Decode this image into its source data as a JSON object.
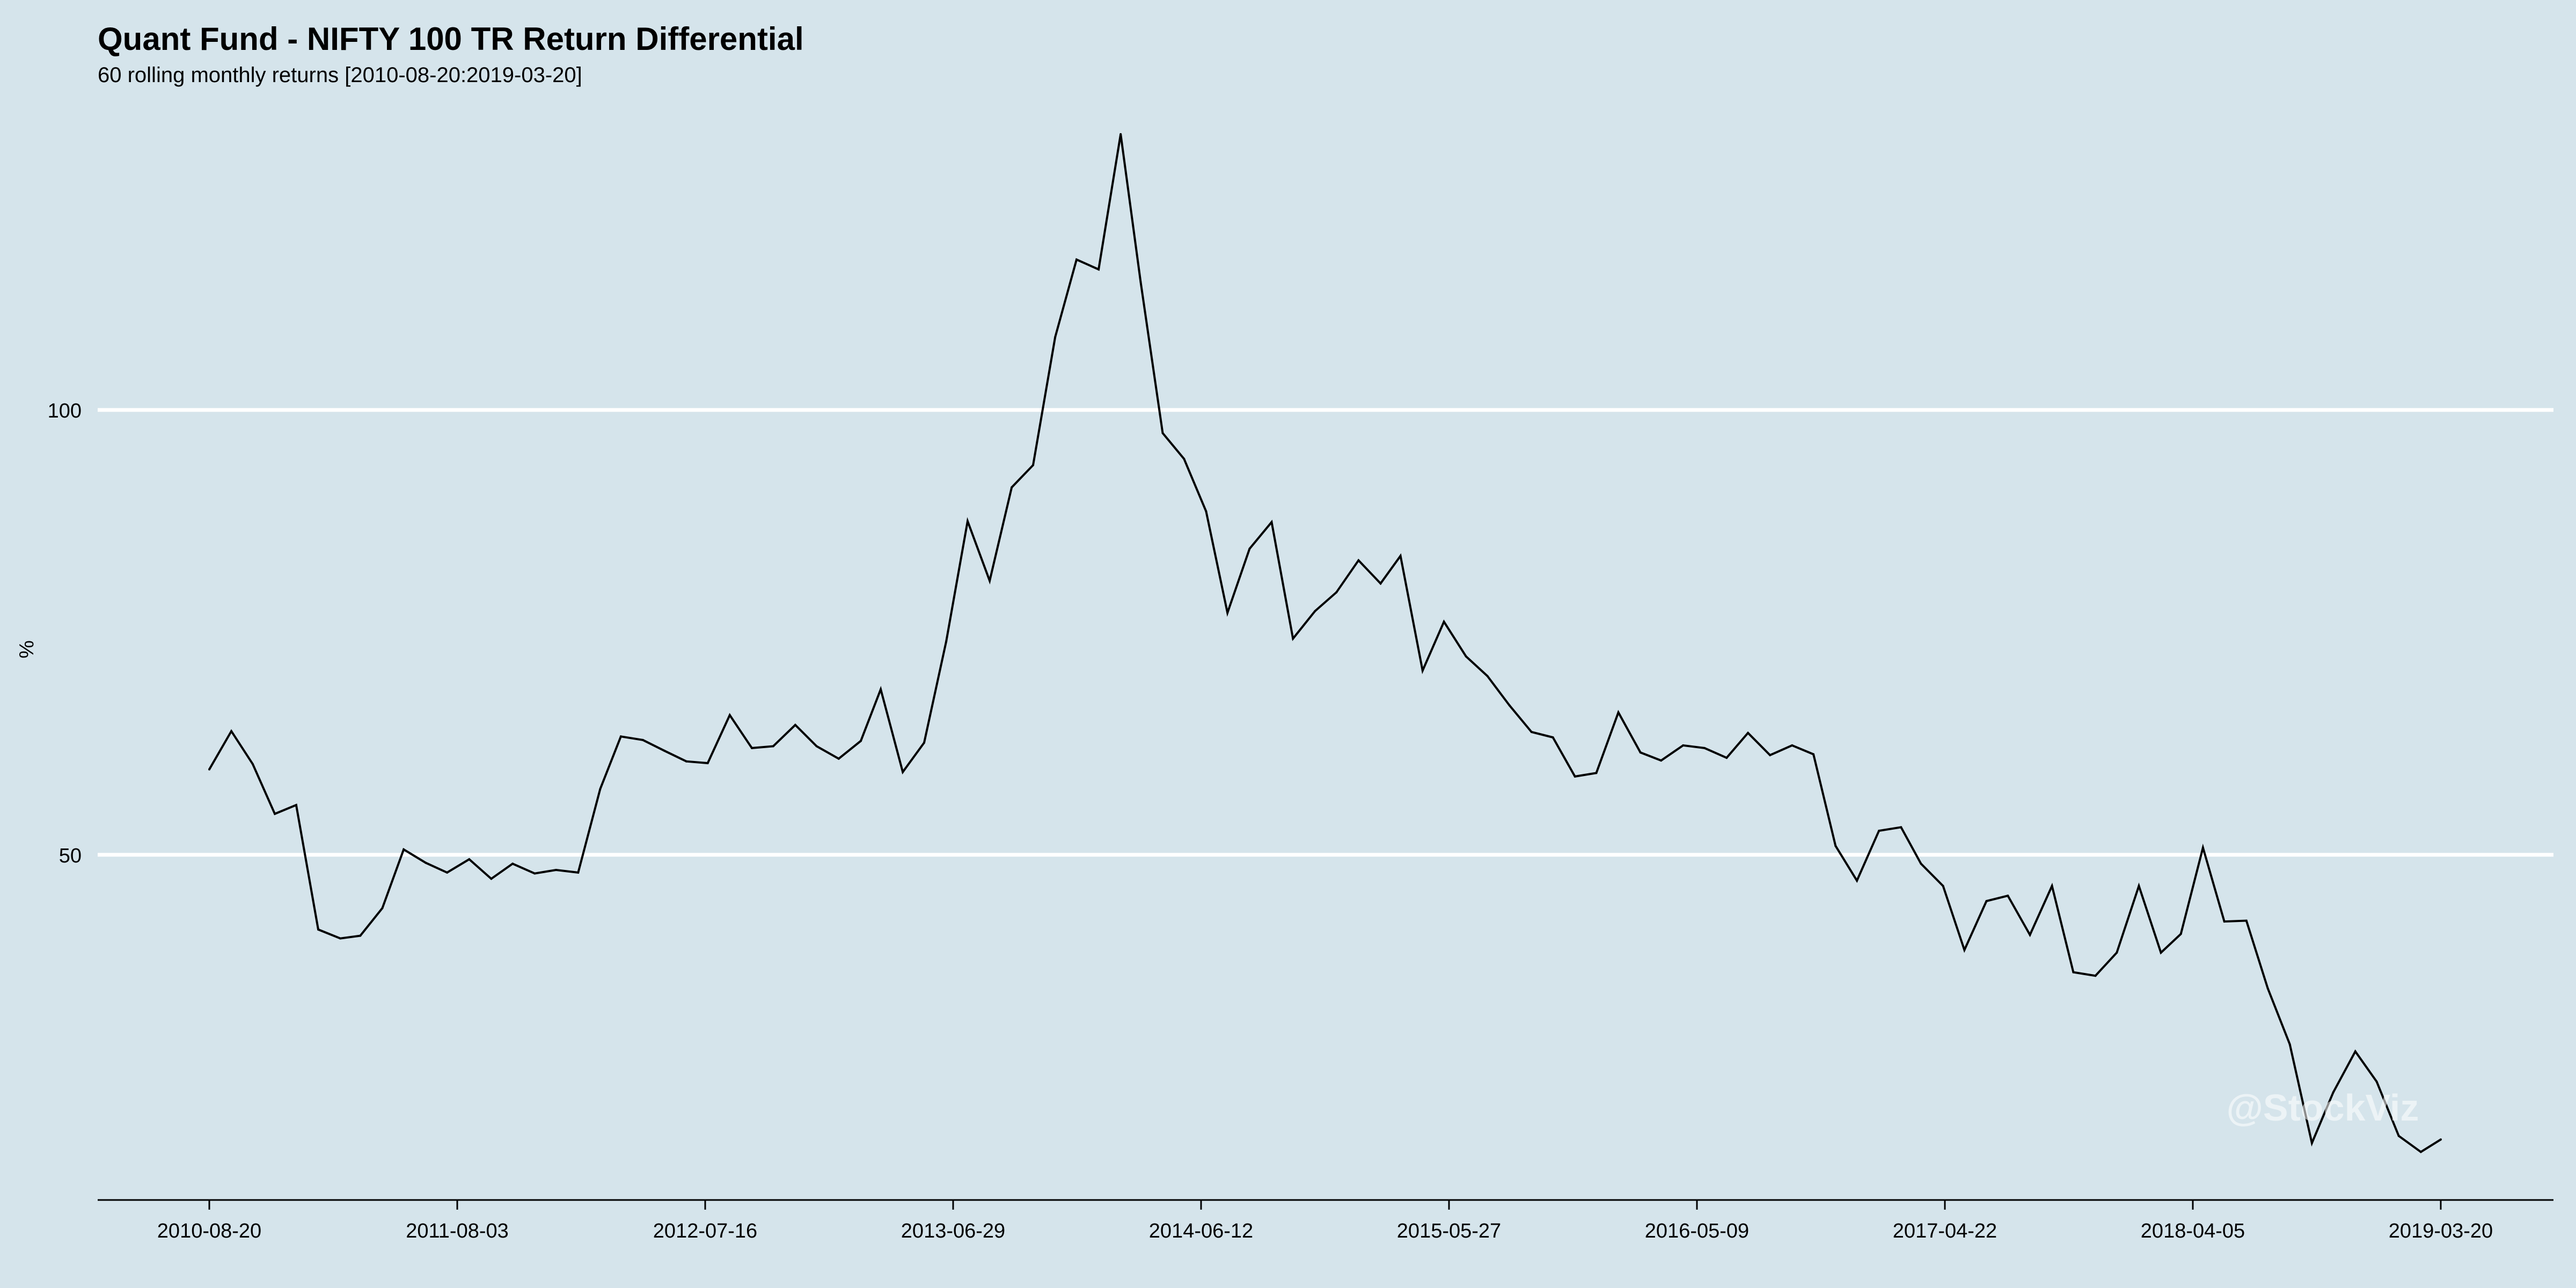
{
  "title": "Quant Fund - NIFTY 100 TR Return Differential",
  "subtitle": "60 rolling monthly returns [2010-08-20:2019-03-20]",
  "watermark": "@StockViz",
  "colors": {
    "background": "#d5e4eb",
    "line": "#000000",
    "gridline": "#ffffff",
    "watermark": "#ffffff"
  },
  "chart_data": {
    "type": "line",
    "title": "Quant Fund - NIFTY 100 TR Return Differential",
    "subtitle": "60 rolling monthly returns [2010-08-20:2019-03-20]",
    "xlabel": "",
    "ylabel": "%",
    "ylim": [
      11.2,
      131
    ],
    "y_ticks": [
      50,
      100
    ],
    "x_tick_labels": [
      "2010-08-20",
      "2011-08-03",
      "2012-07-16",
      "2013-06-29",
      "2014-06-12",
      "2015-05-27",
      "2016-05-09",
      "2017-04-22",
      "2018-04-05",
      "2019-03-20"
    ],
    "grid": "horizontal major lines only",
    "legend": "none",
    "x": [
      "2010-08-20",
      "2010-09-20",
      "2010-10-20",
      "2010-11-20",
      "2010-12-20",
      "2011-01-20",
      "2011-02-20",
      "2011-03-20",
      "2011-04-20",
      "2011-05-20",
      "2011-06-20",
      "2011-07-20",
      "2011-08-20",
      "2011-09-20",
      "2011-10-20",
      "2011-11-20",
      "2011-12-20",
      "2012-01-20",
      "2012-02-20",
      "2012-03-20",
      "2012-04-20",
      "2012-05-20",
      "2012-06-20",
      "2012-07-20",
      "2012-08-20",
      "2012-09-20",
      "2012-10-20",
      "2012-11-20",
      "2012-12-20",
      "2013-01-20",
      "2013-02-20",
      "2013-03-20",
      "2013-04-20",
      "2013-05-20",
      "2013-06-20",
      "2013-07-20",
      "2013-08-20",
      "2013-09-20",
      "2013-10-20",
      "2013-11-20",
      "2013-12-20",
      "2014-01-20",
      "2014-02-20",
      "2014-03-20",
      "2014-04-20",
      "2014-05-20",
      "2014-06-20",
      "2014-07-20",
      "2014-08-20",
      "2014-09-20",
      "2014-10-20",
      "2014-11-20",
      "2014-12-20",
      "2015-01-20",
      "2015-02-20",
      "2015-03-20",
      "2015-04-20",
      "2015-05-20",
      "2015-06-20",
      "2015-07-20",
      "2015-08-20",
      "2015-09-20",
      "2015-10-20",
      "2015-11-20",
      "2015-12-20",
      "2016-01-20",
      "2016-02-20",
      "2016-03-20",
      "2016-04-20",
      "2016-05-20",
      "2016-06-20",
      "2016-07-20",
      "2016-08-20",
      "2016-09-20",
      "2016-10-20",
      "2016-11-20",
      "2016-12-20",
      "2017-01-20",
      "2017-02-20",
      "2017-03-20",
      "2017-04-20",
      "2017-05-20",
      "2017-06-20",
      "2017-07-20",
      "2017-08-20",
      "2017-09-20",
      "2017-10-20",
      "2017-11-20",
      "2017-12-20",
      "2018-01-20",
      "2018-02-20",
      "2018-03-20",
      "2018-04-20",
      "2018-05-20",
      "2018-06-20",
      "2018-07-20",
      "2018-08-20",
      "2018-09-20",
      "2018-10-20",
      "2018-11-20",
      "2018-12-20",
      "2019-01-20",
      "2019-02-20",
      "2019-03-20"
    ],
    "series": [
      {
        "values": [
          59.6,
          63.9,
          60.2,
          54.6,
          55.6,
          41.6,
          40.6,
          40.9,
          44.0,
          50.6,
          49.1,
          48.0,
          49.5,
          47.3,
          49.0,
          47.9,
          48.3,
          48.0,
          57.4,
          63.3,
          62.9,
          61.7,
          60.5,
          60.3,
          65.7,
          62.0,
          62.2,
          64.6,
          62.2,
          60.8,
          62.8,
          68.6,
          59.3,
          62.6,
          74.0,
          87.5,
          80.8,
          91.3,
          93.8,
          108.2,
          116.9,
          115.8,
          131.0,
          114.4,
          97.4,
          94.5,
          88.6,
          77.2,
          84.4,
          87.4,
          74.3,
          77.4,
          79.5,
          83.1,
          80.5,
          83.6,
          70.7,
          76.2,
          72.3,
          70.1,
          66.8,
          63.8,
          63.2,
          58.8,
          59.2,
          66.0,
          61.5,
          60.6,
          62.3,
          62.0,
          60.9,
          63.7,
          61.2,
          62.3,
          61.3,
          51.0,
          47.1,
          52.7,
          53.1,
          49.0,
          46.5,
          39.3,
          44.8,
          45.4,
          41.0,
          46.5,
          36.8,
          36.4,
          39.0,
          46.5,
          39.0,
          41.1,
          50.8,
          42.5,
          42.6,
          35.0,
          28.7,
          17.6,
          23.3,
          27.9,
          24.5,
          18.4,
          16.6,
          18.0
        ]
      }
    ]
  }
}
